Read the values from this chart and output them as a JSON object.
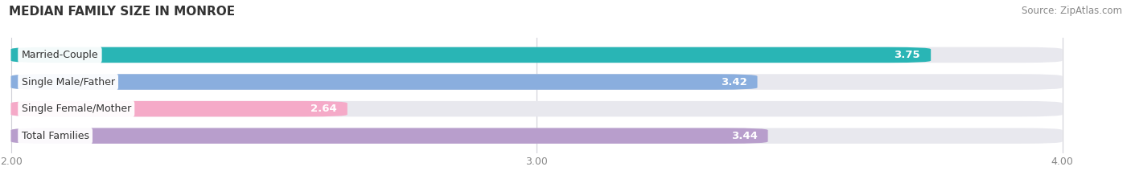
{
  "title": "MEDIAN FAMILY SIZE IN MONROE",
  "source": "Source: ZipAtlas.com",
  "categories": [
    "Married-Couple",
    "Single Male/Father",
    "Single Female/Mother",
    "Total Families"
  ],
  "values": [
    3.75,
    3.42,
    2.64,
    3.44
  ],
  "bar_colors": [
    "#29b5b5",
    "#8aaede",
    "#f5aac8",
    "#b89ecc"
  ],
  "track_color": "#e8e8ee",
  "x_min": 2.0,
  "x_max": 4.0,
  "x_ticks": [
    2.0,
    3.0,
    4.0
  ],
  "bar_height": 0.58,
  "label_color_inside": "#ffffff",
  "label_color_outside": "#555555",
  "background_color": "#ffffff",
  "title_fontsize": 11,
  "source_fontsize": 8.5,
  "tick_fontsize": 9,
  "bar_label_fontsize": 9.5,
  "category_fontsize": 9
}
